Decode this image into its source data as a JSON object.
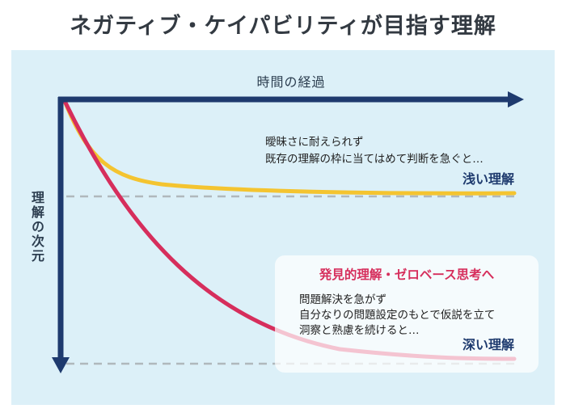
{
  "title": "ネガティブ・ケイパビリティが目指す理解",
  "x_axis_label": "時間の経過",
  "y_axis_label": "理解の次元",
  "shallow": {
    "description_lines": [
      "曖昧さに耐えられず",
      "既存の理解の枠に当てはめて判断を急ぐと…"
    ],
    "label": "浅い理解",
    "color": "#f4c430"
  },
  "deep": {
    "heading": "発見的理解・ゼロベース思考へ",
    "description_lines": [
      "問題解決を急がず",
      "自分なりの問題設定のもとで仮説を立て",
      "洞察と熟慮を続けると…"
    ],
    "label": "深い理解",
    "color": "#d62e5c",
    "heading_color": "#d62e5c"
  },
  "colors": {
    "panel_background": "#dcf0f8",
    "axis": "#1e3a6e",
    "dashed_line": "#b0b8bc"
  }
}
